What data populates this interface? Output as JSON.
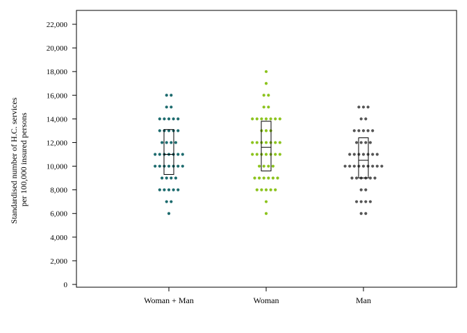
{
  "chart_data": {
    "type": "scatter",
    "ylabel_lines": [
      "Standardised number of H.C. services",
      "per 100,000 insured persons"
    ],
    "xlabel": "",
    "ylim": [
      0,
      23500
    ],
    "yticks": [
      0,
      2000,
      4000,
      6000,
      8000,
      10000,
      12000,
      14000,
      16000,
      18000,
      20000,
      22000
    ],
    "ytick_labels": [
      "0",
      "2,000",
      "4,000",
      "6,000",
      "8,000",
      "10,000",
      "12,000",
      "14,000",
      "16,000",
      "18,000",
      "20,000",
      "22,000"
    ],
    "categories": [
      "Woman + Man",
      "Woman",
      "Man"
    ],
    "grid": false,
    "legend": "none",
    "series": [
      {
        "category": "Woman + Man",
        "color": "#1d6b6e",
        "dot_counts": {
          "6000": 1,
          "7000": 2,
          "8000": 5,
          "9000": 4,
          "10000": 7,
          "11000": 7,
          "12000": 4,
          "13000": 5,
          "14000": 5,
          "15000": 2,
          "16000": 2
        },
        "box": {
          "q1": 9300,
          "median": 11000,
          "q3": 13100
        }
      },
      {
        "category": "Woman",
        "color": "#8cc31e",
        "dot_counts": {
          "6000": 1,
          "7000": 1,
          "8000": 5,
          "9000": 6,
          "10000": 4,
          "11000": 7,
          "12000": 7,
          "13000": 3,
          "14000": 7,
          "15000": 2,
          "16000": 2,
          "17000": 1,
          "18000": 1
        },
        "box": {
          "q1": 9600,
          "median": 11600,
          "q3": 13800
        }
      },
      {
        "category": "Man",
        "color": "#555555",
        "dot_counts": {
          "6000": 2,
          "7000": 4,
          "8000": 2,
          "9000": 6,
          "10000": 9,
          "11000": 7,
          "12000": 4,
          "13000": 5,
          "14000": 2,
          "15000": 3
        },
        "box": {
          "q1": 9000,
          "median": 10500,
          "q3": 12400
        }
      }
    ]
  }
}
